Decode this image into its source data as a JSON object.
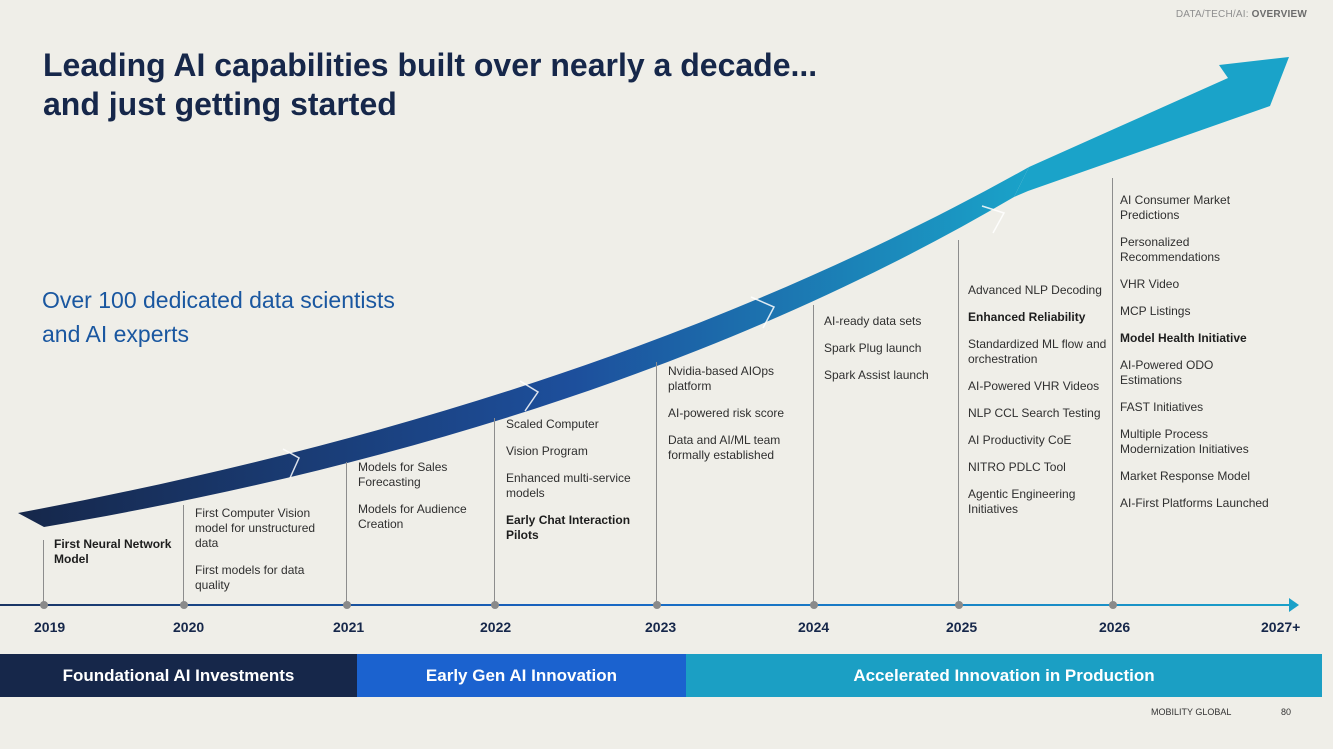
{
  "header": {
    "section": "DATA/TECH/AI: ",
    "section_bold": "OVERVIEW"
  },
  "title": {
    "line1": "Leading AI capabilities built over nearly a decade...",
    "line2": "and just getting started"
  },
  "subtitle": {
    "line1": "Over 100 dedicated data scientists",
    "line2": "and AI experts"
  },
  "years": [
    "2019",
    "2020",
    "2021",
    "2022",
    "2023",
    "2024",
    "2025",
    "2026",
    "2027+"
  ],
  "columns": [
    {
      "items": [
        {
          "text": "First Neural Network Model",
          "bold": true
        }
      ]
    },
    {
      "items": [
        {
          "text": "First Computer Vision model for unstructured data",
          "bold": false
        },
        {
          "text": "First models for data quality",
          "bold": false
        }
      ]
    },
    {
      "items": [
        {
          "text": "Models for Sales Forecasting",
          "bold": false
        },
        {
          "text": "Models for Audience Creation",
          "bold": false
        }
      ]
    },
    {
      "items": [
        {
          "text": "Scaled Computer",
          "bold": false
        },
        {
          "text": "Vision Program",
          "bold": false
        },
        {
          "text": "Enhanced multi-service models",
          "bold": false
        },
        {
          "text": "Early Chat Interaction Pilots",
          "bold": true
        }
      ]
    },
    {
      "items": [
        {
          "text": "Nvidia-based AIOps platform",
          "bold": false
        },
        {
          "text": "AI-powered risk score",
          "bold": false
        },
        {
          "text": "Data and AI/ML team formally established",
          "bold": false
        }
      ]
    },
    {
      "items": [
        {
          "text": "AI-ready data sets",
          "bold": false
        },
        {
          "text": "Spark Plug launch",
          "bold": false
        },
        {
          "text": "Spark Assist launch",
          "bold": false
        }
      ]
    },
    {
      "items": [
        {
          "text": "Advanced NLP Decoding",
          "bold": false
        },
        {
          "text": "Enhanced Reliability",
          "bold": true
        },
        {
          "text": "Standardized ML flow and orchestration",
          "bold": false
        },
        {
          "text": "AI-Powered VHR Videos",
          "bold": false
        },
        {
          "text": "NLP CCL Search Testing",
          "bold": false
        },
        {
          "text": "AI Productivity CoE",
          "bold": false
        },
        {
          "text": "NITRO PDLC Tool",
          "bold": false
        },
        {
          "text": "Agentic Engineering Initiatives",
          "bold": false
        }
      ]
    },
    {
      "items": [
        {
          "text": "AI Consumer Market Predictions",
          "bold": false
        },
        {
          "text": "Personalized Recommendations",
          "bold": false
        },
        {
          "text": "VHR Video",
          "bold": false
        },
        {
          "text": "MCP Listings",
          "bold": false
        },
        {
          "text": "Model Health Initiative",
          "bold": true
        },
        {
          "text": "AI-Powered ODO Estimations",
          "bold": false
        },
        {
          "text": "FAST Initiatives",
          "bold": false
        },
        {
          "text": "Multiple Process Modernization Initiatives",
          "bold": false
        },
        {
          "text": "Market Response Model",
          "bold": false
        },
        {
          "text": "AI-First Platforms Launched",
          "bold": false
        }
      ]
    }
  ],
  "bands": [
    {
      "label": "Foundational AI Investments",
      "color": "#16274a"
    },
    {
      "label": "Early Gen AI Innovation",
      "color": "#1b62cf"
    },
    {
      "label": "Accelerated Innovation in Production",
      "color": "#1b9fc4"
    }
  ],
  "footer": {
    "company": "MOBILITY GLOBAL",
    "page": "80"
  },
  "colors": {
    "arrow_start": "#16274a",
    "arrow_mid": "#1d4f9c",
    "arrow_end": "#1aa3c9",
    "title": "#16274a",
    "subtitle": "#1a57a0"
  }
}
